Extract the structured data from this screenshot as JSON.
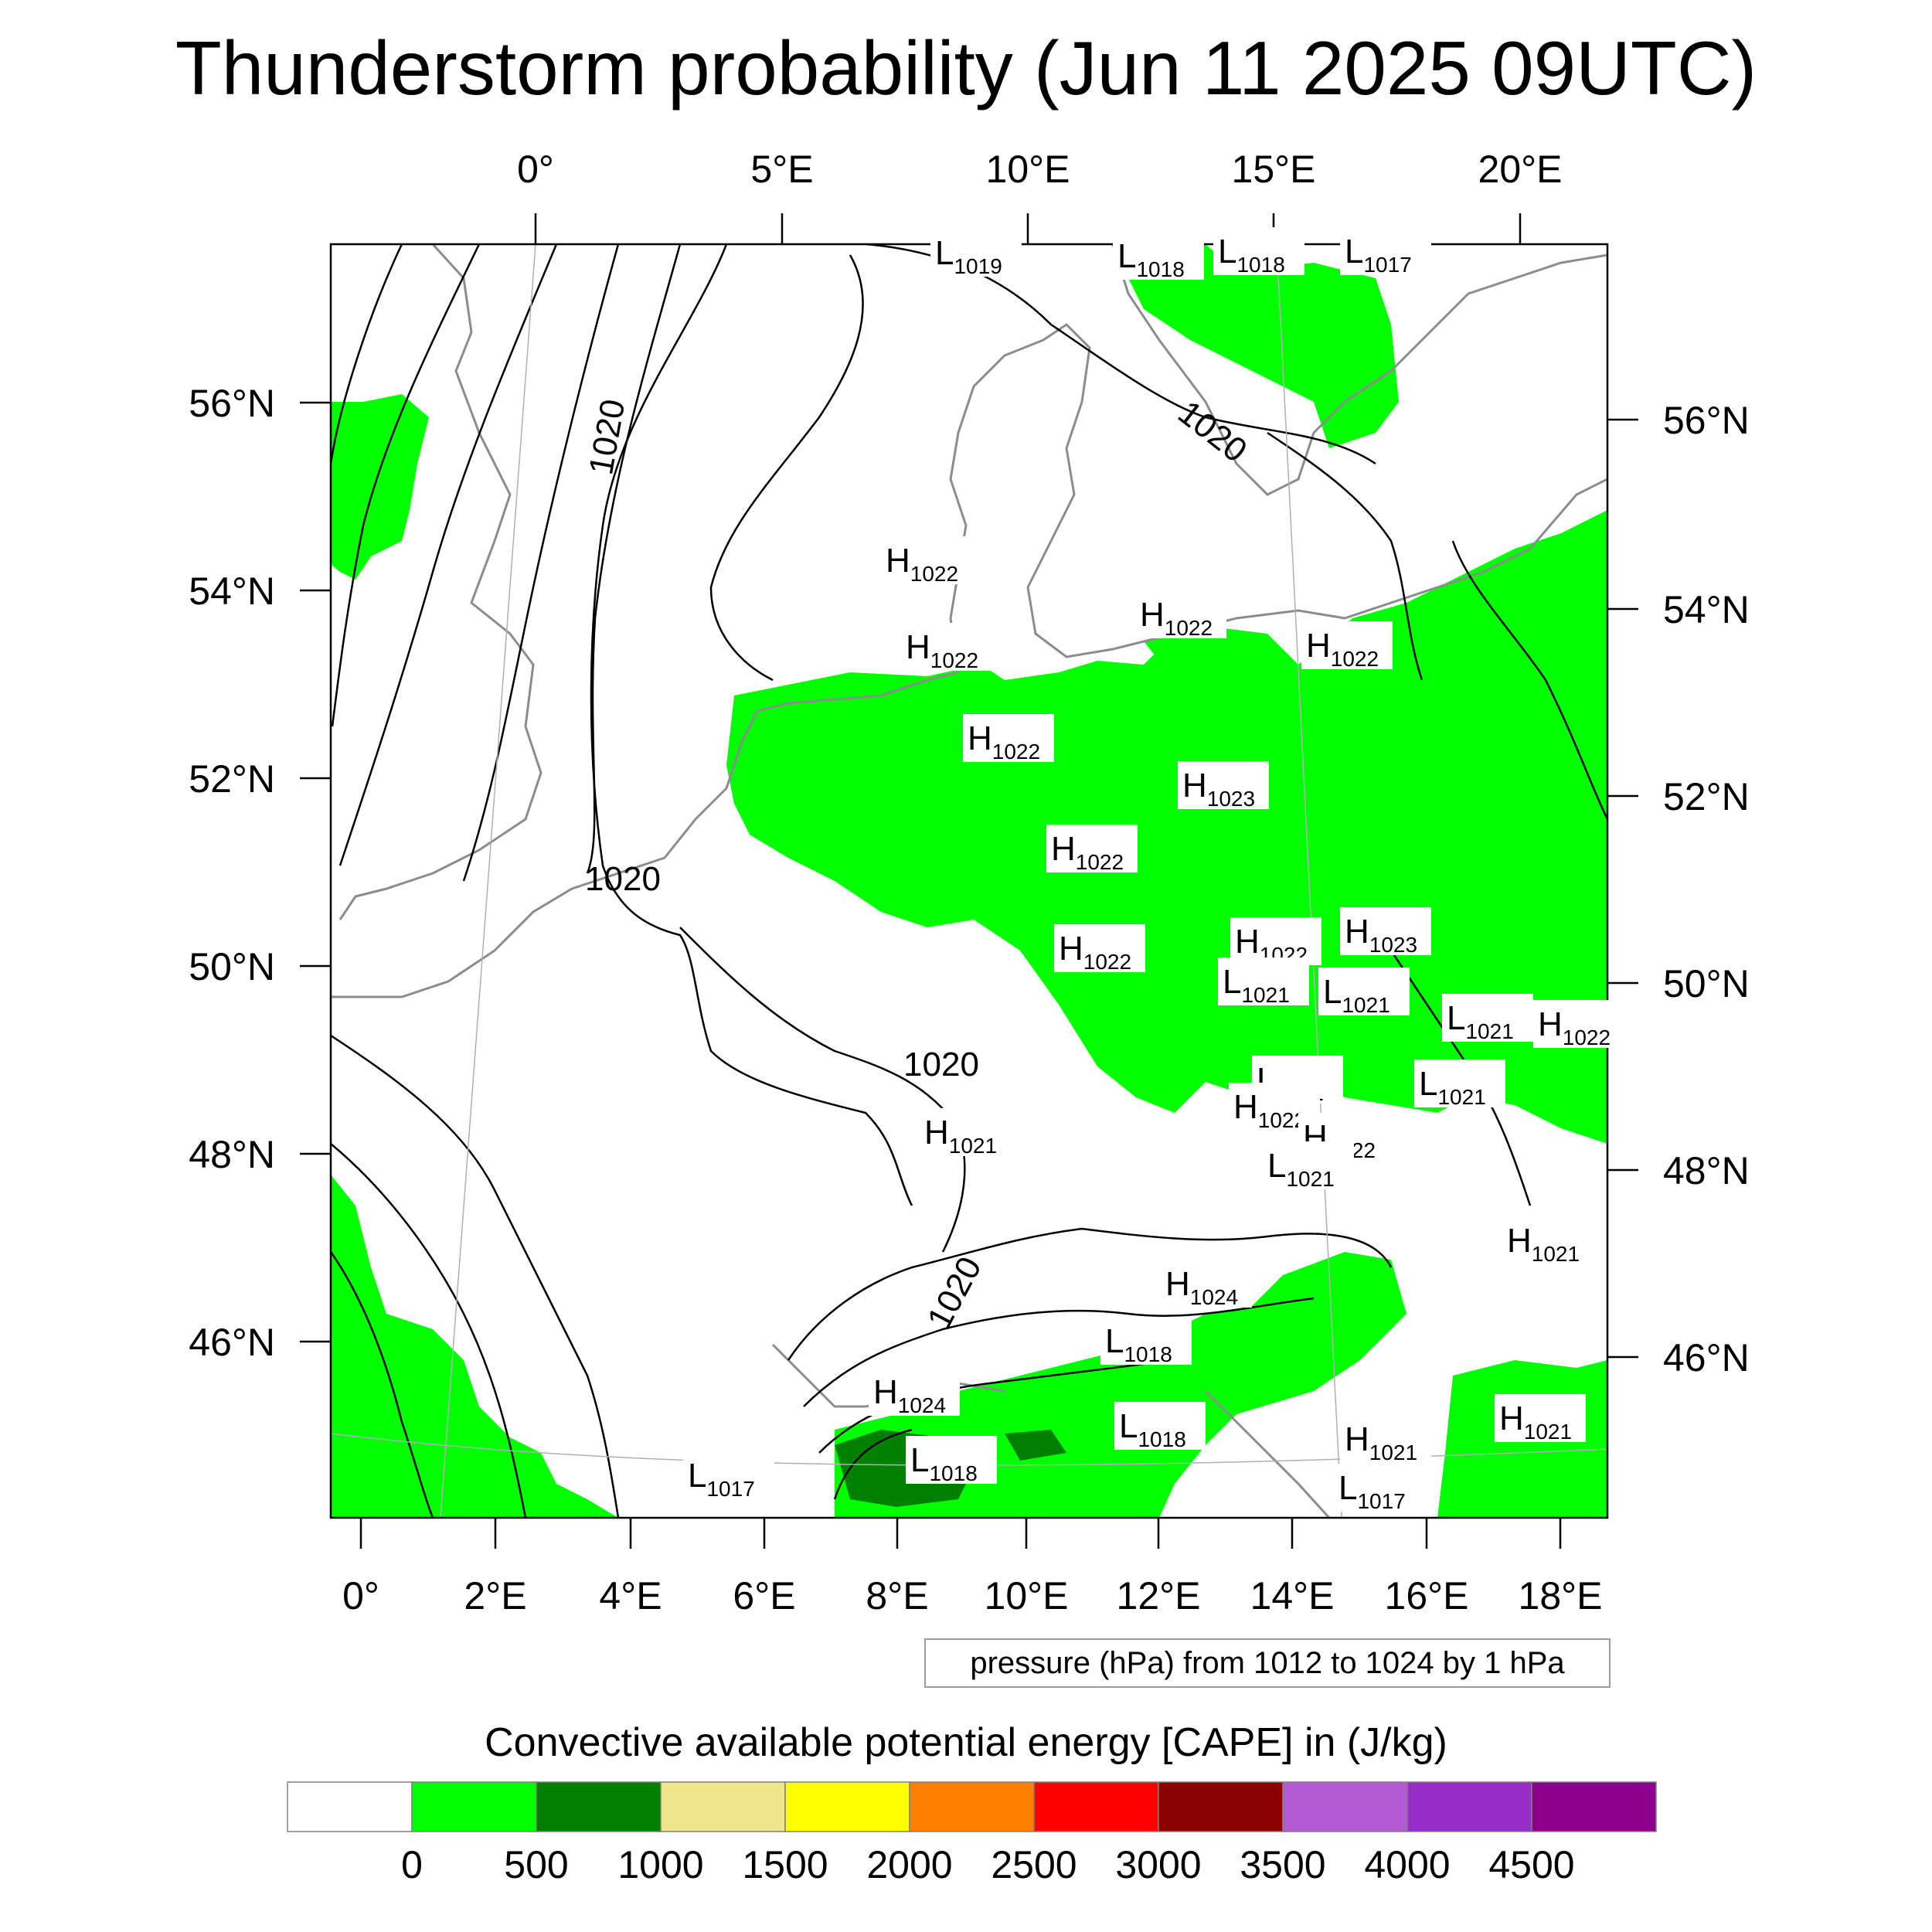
{
  "title": "Thunderstorm probability (Jun 11 2025 09UTC)",
  "map": {
    "top_lon_labels": [
      "0°",
      "5°E",
      "10°E",
      "15°E",
      "20°E"
    ],
    "bottom_lon_labels": [
      "0°",
      "2°E",
      "4°E",
      "6°E",
      "8°E",
      "10°E",
      "12°E",
      "14°E",
      "16°E",
      "18°E"
    ],
    "left_lat_labels": [
      "56°N",
      "54°N",
      "52°N",
      "50°N",
      "48°N",
      "46°N"
    ],
    "right_lat_labels": [
      "56°N",
      "54°N",
      "52°N",
      "50°N",
      "48°N",
      "46°N"
    ],
    "isobar_labels": [
      "1020",
      "1020",
      "1020",
      "1020",
      "1020"
    ],
    "pressure_centers": [
      {
        "type": "L",
        "value": "1019"
      },
      {
        "type": "L",
        "value": "1018"
      },
      {
        "type": "L",
        "value": "1018"
      },
      {
        "type": "L",
        "value": "1017"
      },
      {
        "type": "H",
        "value": "1022"
      },
      {
        "type": "H",
        "value": "1022"
      },
      {
        "type": "H",
        "value": "1022"
      },
      {
        "type": "H",
        "value": "1022"
      },
      {
        "type": "H",
        "value": "1022"
      },
      {
        "type": "H",
        "value": "1023"
      },
      {
        "type": "H",
        "value": "1022"
      },
      {
        "type": "H",
        "value": "1022"
      },
      {
        "type": "H",
        "value": "1022"
      },
      {
        "type": "H",
        "value": "1023"
      },
      {
        "type": "L",
        "value": "1021"
      },
      {
        "type": "L",
        "value": "1021"
      },
      {
        "type": "L",
        "value": "1021"
      },
      {
        "type": "H",
        "value": "1022"
      },
      {
        "type": "L",
        "value": "1021"
      },
      {
        "type": "L",
        "value": "1021"
      },
      {
        "type": "H",
        "value": "1022"
      },
      {
        "type": "H",
        "value": "1022"
      },
      {
        "type": "L",
        "value": "1021"
      },
      {
        "type": "H",
        "value": "1021"
      },
      {
        "type": "H",
        "value": "1021"
      },
      {
        "type": "H",
        "value": "1024"
      },
      {
        "type": "L",
        "value": "1018"
      },
      {
        "type": "H",
        "value": "1024"
      },
      {
        "type": "L",
        "value": "1018"
      },
      {
        "type": "L",
        "value": "1018"
      },
      {
        "type": "H",
        "value": "1021"
      },
      {
        "type": "H",
        "value": "1021"
      },
      {
        "type": "L",
        "value": "1017"
      },
      {
        "type": "L",
        "value": "1017"
      }
    ],
    "colors": {
      "cape_0_500": "#00ff00",
      "cape_500_1000": "#008000",
      "isobar": "#000000",
      "coast": "#8c8c8c"
    }
  },
  "pressure_info": "pressure (hPa) from 1012 to 1024 by 1 hPa",
  "colorbar": {
    "title": "Convective available potential energy [CAPE] in (J/kg)",
    "labels": [
      "0",
      "500",
      "1000",
      "1500",
      "2000",
      "2500",
      "3000",
      "3500",
      "4000",
      "4500"
    ],
    "colors": [
      "#ffffff",
      "#00ff00",
      "#008000",
      "#f0e68c",
      "#ffff00",
      "#ff8000",
      "#ff0000",
      "#8b0000",
      "#b45ad2",
      "#962dc8",
      "#8c008c"
    ]
  }
}
